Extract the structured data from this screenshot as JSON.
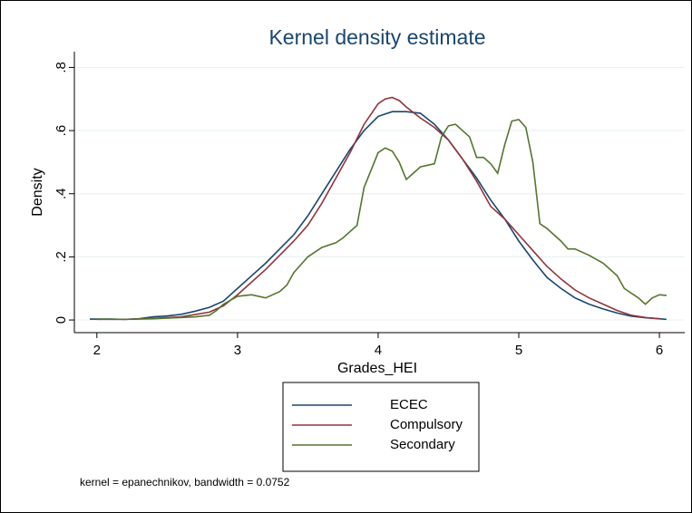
{
  "chart_data": {
    "type": "line",
    "title": "Kernel density estimate",
    "x_label": "Grades_HEI",
    "y_label": "Density",
    "note": "kernel = epanechnikov, bandwidth = 0.0752",
    "xlim": [
      1.84,
      6.18
    ],
    "ylim": [
      -0.04,
      0.85
    ],
    "xticks": [
      2,
      3,
      4,
      5,
      6
    ],
    "yticks": [
      {
        "value": 0,
        "label": "0"
      },
      {
        "value": 0.2,
        "label": ".2"
      },
      {
        "value": 0.4,
        "label": ".4"
      },
      {
        "value": 0.6,
        "label": ".6"
      },
      {
        "value": 0.8,
        "label": ".8"
      }
    ],
    "grid": true,
    "legend": "bottom",
    "series": [
      {
        "name": "ECEC",
        "color": "#1a476f",
        "x": [
          1.95,
          2.1,
          2.2,
          2.3,
          2.4,
          2.5,
          2.6,
          2.7,
          2.8,
          2.9,
          3.0,
          3.1,
          3.2,
          3.3,
          3.4,
          3.5,
          3.6,
          3.7,
          3.8,
          3.9,
          4.0,
          4.1,
          4.2,
          4.3,
          4.4,
          4.5,
          4.6,
          4.7,
          4.8,
          4.9,
          5.0,
          5.1,
          5.2,
          5.3,
          5.4,
          5.5,
          5.6,
          5.7,
          5.8,
          5.9,
          6.0,
          6.05
        ],
        "values": [
          0.003,
          0.003,
          0.002,
          0.004,
          0.01,
          0.013,
          0.018,
          0.028,
          0.04,
          0.06,
          0.1,
          0.14,
          0.18,
          0.225,
          0.27,
          0.33,
          0.4,
          0.47,
          0.54,
          0.6,
          0.645,
          0.66,
          0.66,
          0.655,
          0.62,
          0.57,
          0.51,
          0.45,
          0.38,
          0.32,
          0.25,
          0.19,
          0.135,
          0.1,
          0.07,
          0.05,
          0.035,
          0.022,
          0.012,
          0.007,
          0.004,
          0.002
        ]
      },
      {
        "name": "Compulsory",
        "color": "#90353b",
        "x": [
          2.0,
          2.2,
          2.4,
          2.6,
          2.8,
          2.9,
          3.0,
          3.1,
          3.2,
          3.3,
          3.4,
          3.5,
          3.6,
          3.7,
          3.8,
          3.9,
          4.0,
          4.05,
          4.1,
          4.15,
          4.2,
          4.3,
          4.4,
          4.5,
          4.6,
          4.7,
          4.8,
          4.9,
          5.0,
          5.1,
          5.2,
          5.3,
          5.4,
          5.5,
          5.6,
          5.7,
          5.8,
          5.9,
          6.0
        ],
        "values": [
          0.002,
          0.002,
          0.005,
          0.01,
          0.025,
          0.045,
          0.08,
          0.12,
          0.16,
          0.205,
          0.25,
          0.3,
          0.37,
          0.45,
          0.53,
          0.62,
          0.685,
          0.7,
          0.705,
          0.695,
          0.675,
          0.64,
          0.61,
          0.57,
          0.51,
          0.44,
          0.36,
          0.32,
          0.27,
          0.22,
          0.17,
          0.13,
          0.095,
          0.07,
          0.05,
          0.03,
          0.015,
          0.008,
          0.004
        ]
      },
      {
        "name": "Secondary",
        "color": "#55752f",
        "x": [
          2.0,
          2.2,
          2.4,
          2.6,
          2.7,
          2.8,
          2.85,
          2.9,
          3.0,
          3.1,
          3.2,
          3.3,
          3.35,
          3.4,
          3.5,
          3.6,
          3.7,
          3.75,
          3.85,
          3.9,
          4.0,
          4.05,
          4.1,
          4.15,
          4.2,
          4.25,
          4.3,
          4.4,
          4.45,
          4.5,
          4.55,
          4.6,
          4.65,
          4.7,
          4.75,
          4.8,
          4.85,
          4.9,
          4.95,
          5.0,
          5.05,
          5.1,
          5.15,
          5.2,
          5.3,
          5.35,
          5.4,
          5.5,
          5.6,
          5.7,
          5.75,
          5.85,
          5.9,
          5.95,
          6.0,
          6.05
        ],
        "values": [
          0.003,
          0.002,
          0.004,
          0.008,
          0.01,
          0.015,
          0.03,
          0.05,
          0.075,
          0.08,
          0.07,
          0.09,
          0.11,
          0.15,
          0.2,
          0.23,
          0.245,
          0.26,
          0.3,
          0.42,
          0.53,
          0.545,
          0.535,
          0.5,
          0.445,
          0.465,
          0.485,
          0.495,
          0.58,
          0.615,
          0.62,
          0.6,
          0.58,
          0.515,
          0.515,
          0.495,
          0.465,
          0.555,
          0.63,
          0.635,
          0.61,
          0.5,
          0.305,
          0.29,
          0.25,
          0.225,
          0.225,
          0.205,
          0.18,
          0.14,
          0.1,
          0.07,
          0.05,
          0.07,
          0.08,
          0.078
        ]
      }
    ]
  }
}
